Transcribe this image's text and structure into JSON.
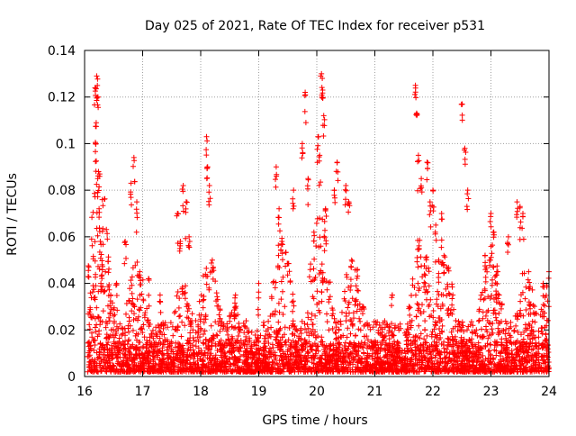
{
  "chart_data": {
    "type": "scatter",
    "title": "Day 025 of 2021, Rate Of TEC Index for receiver p531",
    "xlabel": "GPS time / hours",
    "ylabel": "ROTI / TECUs",
    "xlim": [
      16,
      24
    ],
    "ylim": [
      0,
      0.14
    ],
    "x_ticks": [
      "16",
      "17",
      "18",
      "19",
      "20",
      "21",
      "22",
      "23",
      "24"
    ],
    "y_ticks": [
      "0",
      "0.02",
      "0.04",
      "0.06",
      "0.08",
      "0.1",
      "0.12",
      "0.14"
    ],
    "grid": true,
    "marker": "+",
    "series": [
      {
        "name": "ROTI",
        "color": "#ff0000",
        "x": [
          16.18,
          16.19,
          16.21,
          16.2,
          16.22,
          16.24,
          16.25,
          16.27,
          16.3,
          16.45,
          16.55,
          16.7,
          16.8,
          16.85,
          16.9,
          16.95,
          17.1,
          17.3,
          17.6,
          17.65,
          17.7,
          17.75,
          17.8,
          18.1,
          18.12,
          18.15,
          18.2,
          18.6,
          19.0,
          19.3,
          19.35,
          19.4,
          19.6,
          19.75,
          19.8,
          19.85,
          19.95,
          20.02,
          20.05,
          20.08,
          20.1,
          20.12,
          20.15,
          20.3,
          20.35,
          20.5,
          20.55,
          20.6,
          20.7,
          20.8,
          21.3,
          21.7,
          21.72,
          21.75,
          21.8,
          21.9,
          21.95,
          22.0,
          22.05,
          22.1,
          22.15,
          22.5,
          22.55,
          22.6,
          22.9,
          23.0,
          23.05,
          23.1,
          23.3,
          23.45,
          23.5,
          23.55,
          23.65,
          23.9,
          24.0
        ],
        "y": [
          0.124,
          0.1,
          0.129,
          0.109,
          0.12,
          0.088,
          0.072,
          0.058,
          0.048,
          0.035,
          0.04,
          0.058,
          0.083,
          0.094,
          0.075,
          0.045,
          0.042,
          0.035,
          0.07,
          0.058,
          0.082,
          0.075,
          0.06,
          0.103,
          0.09,
          0.082,
          0.05,
          0.035,
          0.04,
          0.09,
          0.072,
          0.058,
          0.08,
          0.1,
          0.122,
          0.085,
          0.062,
          0.103,
          0.095,
          0.13,
          0.123,
          0.112,
          0.072,
          0.08,
          0.092,
          0.082,
          0.075,
          0.05,
          0.046,
          0.03,
          0.035,
          0.125,
          0.113,
          0.095,
          0.085,
          0.092,
          0.075,
          0.08,
          0.065,
          0.05,
          0.07,
          0.117,
          0.098,
          0.08,
          0.052,
          0.07,
          0.062,
          0.045,
          0.06,
          0.075,
          0.073,
          0.07,
          0.045,
          0.04,
          0.045
        ]
      }
    ]
  }
}
